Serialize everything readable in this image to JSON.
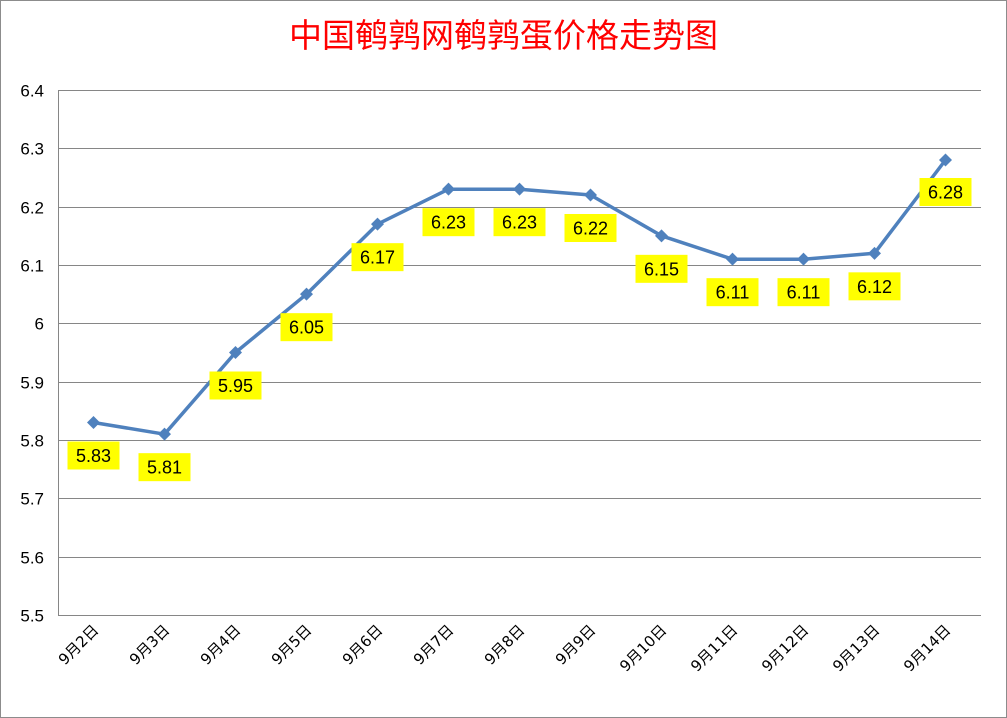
{
  "chart_data": {
    "type": "line",
    "title": "中国鹌鹑网鹌鹑蛋价格走势图",
    "xlabel": "",
    "ylabel": "",
    "categories": [
      "9月2日",
      "9月3日",
      "9月4日",
      "9月5日",
      "9月6日",
      "9月7日",
      "9月8日",
      "9月9日",
      "9月10日",
      "9月11日",
      "9月12日",
      "9月13日",
      "9月14日"
    ],
    "values": [
      5.83,
      5.81,
      5.95,
      6.05,
      6.17,
      6.23,
      6.23,
      6.22,
      6.15,
      6.11,
      6.11,
      6.12,
      6.28
    ],
    "data_labels": [
      "5.83",
      "5.81",
      "5.95",
      "6.05",
      "6.17",
      "6.23",
      "6.23",
      "6.22",
      "6.15",
      "6.11",
      "6.11",
      "6.12",
      "6.28"
    ],
    "yticks": [
      "5.5",
      "5.6",
      "5.7",
      "5.8",
      "5.9",
      "6",
      "6.1",
      "6.2",
      "6.3",
      "6.4"
    ],
    "ylim": [
      5.5,
      6.4
    ],
    "ystep": 0.1,
    "grid": true,
    "legend": "none",
    "marker": "diamond",
    "colors": {
      "line": "#4f81bd",
      "title": "#ff0000",
      "label_bg": "#ffff00",
      "grid": "#868686"
    }
  }
}
